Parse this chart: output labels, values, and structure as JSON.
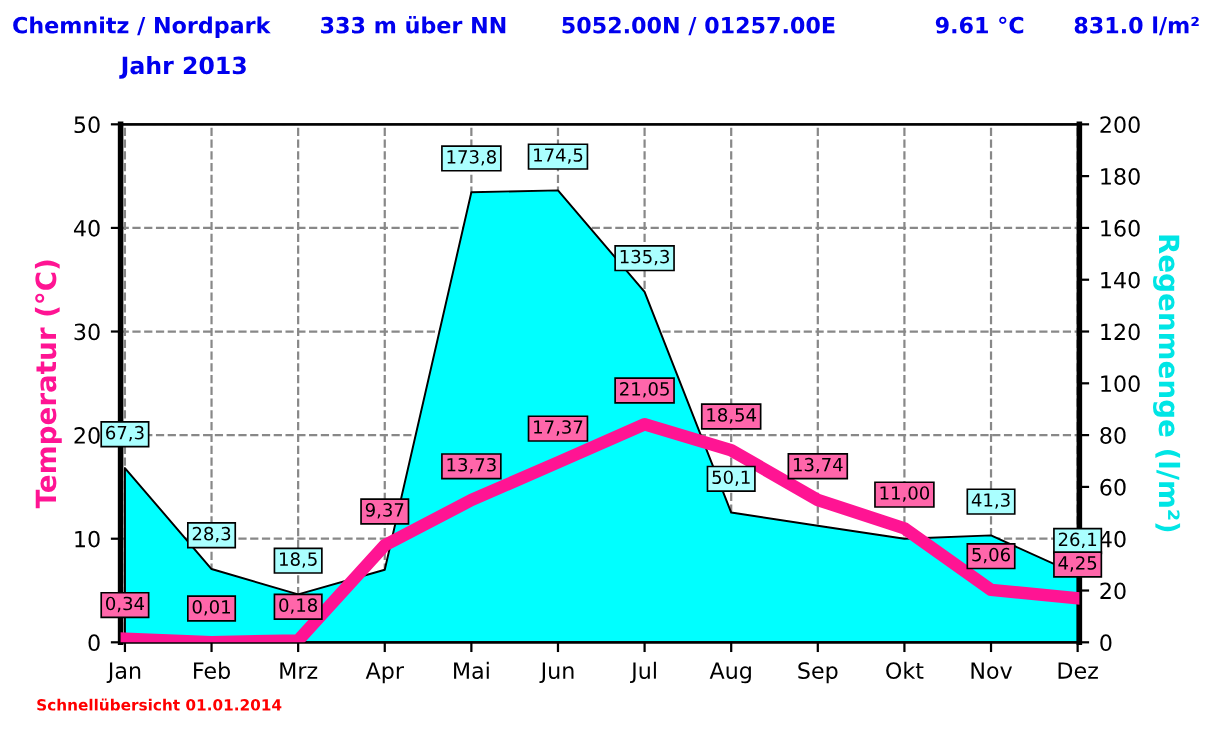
{
  "chart_data": {
    "type": "line",
    "title": "Chemnitz / Nordpark",
    "subtitle": "Jahr 2013",
    "ylabel": "Temperatur (°C)",
    "y2label": "Regenmenge (l/m²)",
    "annotations": [
      "333 m über NN",
      "5052.00N / 01257.00E",
      "9.61 °C",
      "831.0 l/m²",
      "Schnellübersicht 01.01.2014"
    ],
    "categories": [
      "Jan",
      "Feb",
      "Mrz",
      "Apr",
      "Mai",
      "Jun",
      "Jul",
      "Aug",
      "Sep",
      "Okt",
      "Nov",
      "Dez"
    ],
    "series": [
      {
        "type": "area",
        "axis": "y2",
        "color": "#00ffff",
        "values": [
          67.3,
          28.3,
          18.5,
          28,
          173.8,
          174.5,
          135.3,
          50.1,
          45,
          40,
          41.3,
          26.1
        ],
        "value_labels": [
          "67,3",
          "28,3",
          "18,5",
          null,
          "173,8",
          "174,5",
          "135,3",
          "50,1",
          null,
          null,
          "41,3",
          "26,1"
        ]
      },
      {
        "axis": "y",
        "color": "#ff1493",
        "values": [
          0.34,
          0.01,
          0.18,
          9.37,
          13.73,
          17.37,
          21.05,
          18.54,
          13.74,
          11.0,
          5.06,
          4.25
        ],
        "value_labels": [
          "0,34",
          "0,01",
          "0,18",
          "9,37",
          "13,73",
          "17,37",
          "21,05",
          "18,54",
          "13,74",
          "11,00",
          "5,06",
          "4,25"
        ]
      }
    ],
    "ylim": [
      0,
      50
    ],
    "yticks": [
      0,
      10,
      20,
      30,
      40,
      50
    ],
    "y2lim": [
      0,
      200
    ],
    "y2ticks": [
      0,
      20,
      40,
      60,
      80,
      100,
      120,
      140,
      160,
      180,
      200
    ],
    "grid": true,
    "legend": false,
    "marker": "none",
    "line_style": "solid"
  }
}
